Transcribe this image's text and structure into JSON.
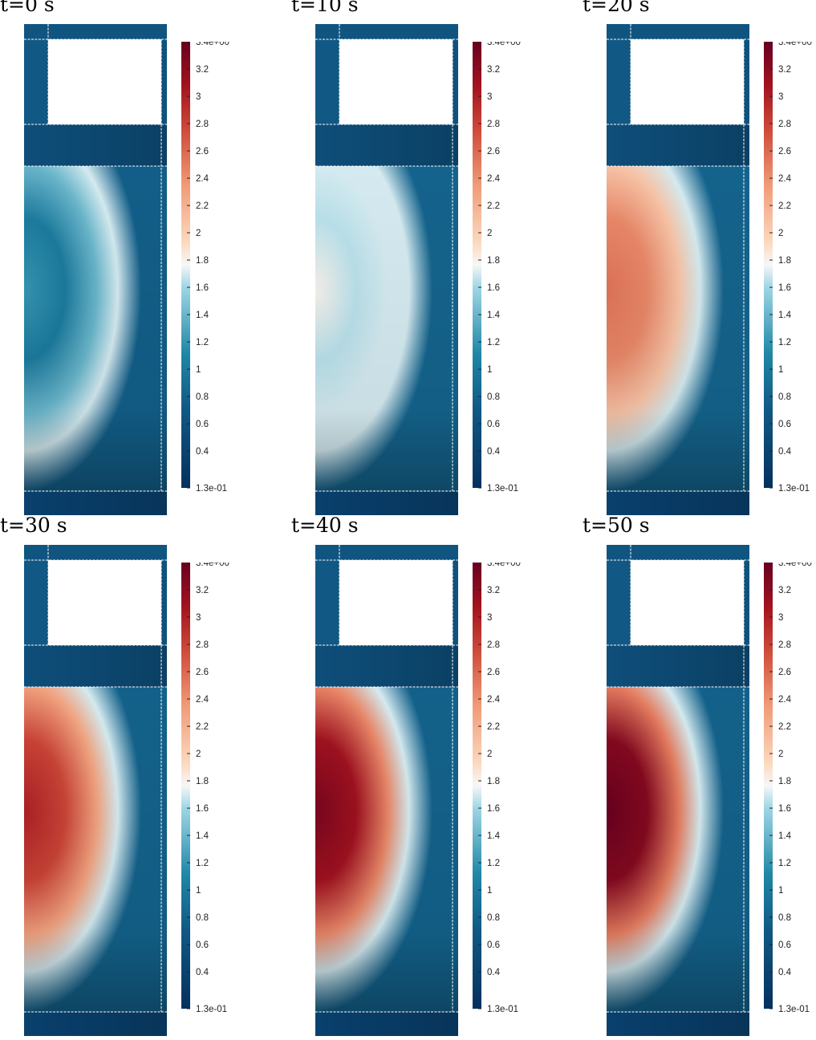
{
  "colormap": {
    "name": "RdBu (reversed)",
    "stops": [
      {
        "t": 0.0,
        "color": "#05305e"
      },
      {
        "t": 0.18,
        "color": "#115a85"
      },
      {
        "t": 0.3,
        "color": "#1f87a6"
      },
      {
        "t": 0.45,
        "color": "#9fd6e5"
      },
      {
        "t": 0.5,
        "color": "#f7f7f7"
      },
      {
        "t": 0.55,
        "color": "#fbd9bf"
      },
      {
        "t": 0.68,
        "color": "#f09a76"
      },
      {
        "t": 0.8,
        "color": "#cf4c3b"
      },
      {
        "t": 0.9,
        "color": "#a3131f"
      },
      {
        "t": 1.0,
        "color": "#67001f"
      }
    ]
  },
  "colorbar": {
    "min_label": "1.3e-01",
    "max_label": "3.4e+00",
    "min": 0.13,
    "max": 3.4,
    "ticks": [
      "3.2",
      "3",
      "2.8",
      "2.6",
      "2.4",
      "2.2",
      "2",
      "1.8",
      "1.6",
      "1.4",
      "1.2",
      "1",
      "0.8",
      "0.6",
      "0.4"
    ]
  },
  "panels": [
    {
      "title": "t=0 s",
      "blob_peak": 1.2,
      "blob_center_value": 1.0,
      "background_value": 0.75
    },
    {
      "title": "t=10 s",
      "blob_peak": 1.8,
      "blob_center_value": 1.65,
      "background_value": 0.8
    },
    {
      "title": "t=20 s",
      "blob_peak": 2.55,
      "blob_center_value": 2.45,
      "background_value": 0.8
    },
    {
      "title": "t=30 s",
      "blob_peak": 3.0,
      "blob_center_value": 2.8,
      "background_value": 0.78
    },
    {
      "title": "t=40 s",
      "blob_peak": 3.3,
      "blob_center_value": 3.1,
      "background_value": 0.78
    },
    {
      "title": "t=50 s",
      "blob_peak": 3.4,
      "blob_center_value": 3.25,
      "background_value": 0.78
    }
  ]
}
